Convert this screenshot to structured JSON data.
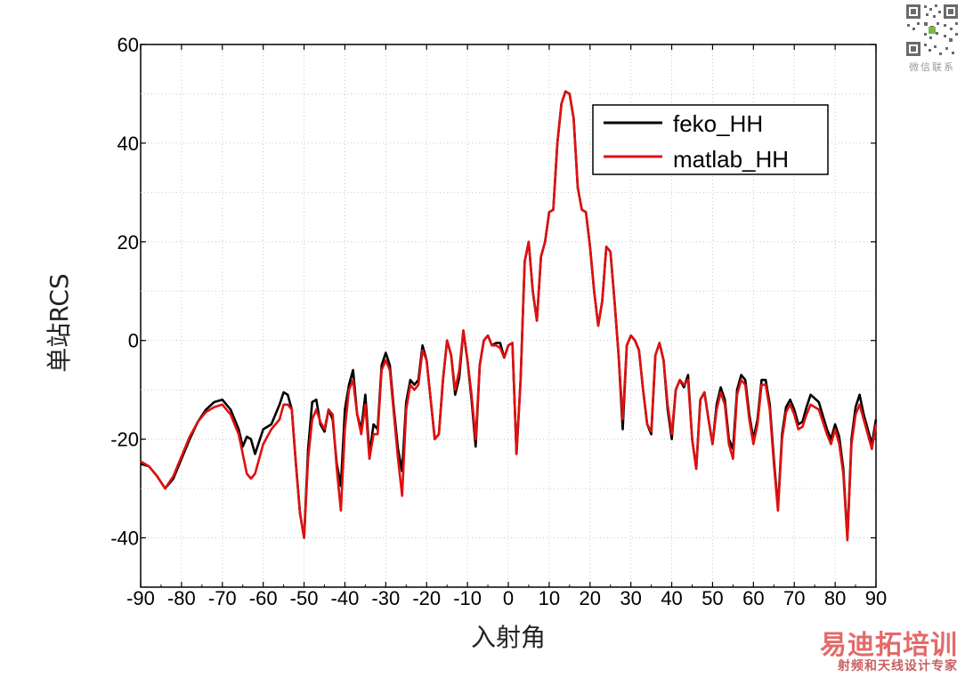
{
  "chart_data": {
    "type": "line",
    "title": "",
    "xlabel": "入射角",
    "ylabel": "单站RCS",
    "xlim": [
      -90,
      90
    ],
    "ylim": [
      -50,
      60
    ],
    "xticks": [
      "-90",
      "-80",
      "-70",
      "-60",
      "-50",
      "-40",
      "-30",
      "-20",
      "-10",
      "0",
      "10",
      "20",
      "30",
      "40",
      "50",
      "60",
      "70",
      "80",
      "90"
    ],
    "yticks": [
      "-40",
      "-20",
      "0",
      "20",
      "40",
      "60"
    ],
    "grid": true,
    "legend_position": "top-right",
    "series": [
      {
        "name": "feko_HH",
        "color": "#000000",
        "points": [
          [
            -90,
            -25
          ],
          [
            -88,
            -25.5
          ],
          [
            -86,
            -27.5
          ],
          [
            -84,
            -30
          ],
          [
            -82,
            -28
          ],
          [
            -80,
            -24
          ],
          [
            -78,
            -20
          ],
          [
            -76,
            -16.5
          ],
          [
            -74,
            -14
          ],
          [
            -72,
            -12.5
          ],
          [
            -70,
            -12
          ],
          [
            -68,
            -14
          ],
          [
            -66,
            -18
          ],
          [
            -65,
            -21.5
          ],
          [
            -64,
            -19.5
          ],
          [
            -63,
            -20
          ],
          [
            -62,
            -23
          ],
          [
            -60,
            -18
          ],
          [
            -58,
            -17
          ],
          [
            -56,
            -13
          ],
          [
            -55,
            -10.5
          ],
          [
            -54,
            -11
          ],
          [
            -53,
            -14
          ],
          [
            -52,
            -25
          ],
          [
            -51,
            -35
          ],
          [
            -50,
            -40
          ],
          [
            -49,
            -22
          ],
          [
            -48,
            -12.5
          ],
          [
            -47,
            -12
          ],
          [
            -46,
            -17
          ],
          [
            -45,
            -18.5
          ],
          [
            -44,
            -14
          ],
          [
            -43,
            -16
          ],
          [
            -42,
            -25
          ],
          [
            -41,
            -29.5
          ],
          [
            -40,
            -14
          ],
          [
            -39,
            -9
          ],
          [
            -38,
            -6
          ],
          [
            -37,
            -15
          ],
          [
            -36,
            -18
          ],
          [
            -35,
            -11
          ],
          [
            -34,
            -23
          ],
          [
            -33,
            -17
          ],
          [
            -32,
            -18
          ],
          [
            -31,
            -5
          ],
          [
            -30,
            -2.5
          ],
          [
            -29,
            -5
          ],
          [
            -28,
            -14
          ],
          [
            -27,
            -22
          ],
          [
            -26,
            -26.5
          ],
          [
            -25,
            -12.5
          ],
          [
            -24,
            -8
          ],
          [
            -23,
            -9
          ],
          [
            -22,
            -8
          ],
          [
            -21,
            -1
          ],
          [
            -20,
            -4
          ],
          [
            -19,
            -12
          ],
          [
            -18,
            -20
          ],
          [
            -17,
            -19
          ],
          [
            -16,
            -8
          ],
          [
            -15,
            0
          ],
          [
            -14,
            -3
          ],
          [
            -13,
            -11
          ],
          [
            -12,
            -7.5
          ],
          [
            -11,
            2
          ],
          [
            -10,
            -4
          ],
          [
            -9,
            -12
          ],
          [
            -8,
            -21.5
          ],
          [
            -7,
            -5
          ],
          [
            -6,
            0
          ],
          [
            -5,
            1
          ],
          [
            -4,
            -1
          ],
          [
            -3,
            -0.5
          ],
          [
            -2,
            -0.5
          ],
          [
            -1,
            -3.5
          ],
          [
            0,
            -1
          ],
          [
            1,
            -0.5
          ],
          [
            2,
            -23
          ],
          [
            3,
            -8
          ],
          [
            4,
            16
          ],
          [
            5,
            20
          ],
          [
            6,
            10
          ],
          [
            7,
            4
          ],
          [
            8,
            17
          ],
          [
            9,
            20
          ],
          [
            10,
            26
          ],
          [
            11,
            26.5
          ],
          [
            12,
            40
          ],
          [
            13,
            48
          ],
          [
            14,
            50.5
          ],
          [
            15,
            50
          ],
          [
            16,
            45
          ],
          [
            17,
            31
          ],
          [
            18,
            26.5
          ],
          [
            19,
            26
          ],
          [
            20,
            19
          ],
          [
            21,
            10
          ],
          [
            22,
            3
          ],
          [
            23,
            8
          ],
          [
            24,
            19
          ],
          [
            25,
            18
          ],
          [
            26,
            8
          ],
          [
            27,
            -3
          ],
          [
            28,
            -18
          ],
          [
            29,
            -1
          ],
          [
            30,
            1
          ],
          [
            31,
            0
          ],
          [
            32,
            -2
          ],
          [
            33,
            -10
          ],
          [
            34,
            -17
          ],
          [
            35,
            -19
          ],
          [
            36,
            -3
          ],
          [
            37,
            -0.5
          ],
          [
            38,
            -4
          ],
          [
            39,
            -14
          ],
          [
            40,
            -20
          ],
          [
            41,
            -10
          ],
          [
            42,
            -8
          ],
          [
            43,
            -9.5
          ],
          [
            44,
            -7
          ],
          [
            45,
            -20
          ],
          [
            46,
            -26
          ],
          [
            47,
            -12
          ],
          [
            48,
            -10.5
          ],
          [
            49,
            -16
          ],
          [
            50,
            -21
          ],
          [
            51,
            -13
          ],
          [
            52,
            -9.5
          ],
          [
            53,
            -12
          ],
          [
            54,
            -20
          ],
          [
            55,
            -22
          ],
          [
            56,
            -10
          ],
          [
            57,
            -7
          ],
          [
            58,
            -8
          ],
          [
            59,
            -15
          ],
          [
            60,
            -20
          ],
          [
            61,
            -16
          ],
          [
            62,
            -8
          ],
          [
            63,
            -8
          ],
          [
            64,
            -13
          ],
          [
            65,
            -24
          ],
          [
            66,
            -34
          ],
          [
            67,
            -19
          ],
          [
            68,
            -13.5
          ],
          [
            69,
            -12
          ],
          [
            70,
            -14
          ],
          [
            71,
            -17
          ],
          [
            72,
            -16.5
          ],
          [
            73,
            -13.5
          ],
          [
            74,
            -11
          ],
          [
            76,
            -12.5
          ],
          [
            78,
            -18
          ],
          [
            79,
            -20
          ],
          [
            80,
            -17
          ],
          [
            81,
            -19.5
          ],
          [
            82,
            -26
          ],
          [
            83,
            -40
          ],
          [
            84,
            -20
          ],
          [
            85,
            -13.5
          ],
          [
            86,
            -11
          ],
          [
            87,
            -15
          ],
          [
            88,
            -18
          ],
          [
            89,
            -21
          ],
          [
            90,
            -16
          ]
        ]
      },
      {
        "name": "matlab_HH",
        "color": "#e01010",
        "points": [
          [
            -90,
            -24.5
          ],
          [
            -88,
            -25.5
          ],
          [
            -86,
            -27.5
          ],
          [
            -84,
            -30
          ],
          [
            -82,
            -27.5
          ],
          [
            -80,
            -23.5
          ],
          [
            -78,
            -19.5
          ],
          [
            -76,
            -16.5
          ],
          [
            -74,
            -14.5
          ],
          [
            -72,
            -13.5
          ],
          [
            -70,
            -13
          ],
          [
            -68,
            -15
          ],
          [
            -66,
            -19
          ],
          [
            -65,
            -23
          ],
          [
            -64,
            -27
          ],
          [
            -63,
            -28
          ],
          [
            -62,
            -27
          ],
          [
            -60,
            -21
          ],
          [
            -58,
            -18
          ],
          [
            -56,
            -16
          ],
          [
            -55,
            -13
          ],
          [
            -54,
            -13
          ],
          [
            -53,
            -14
          ],
          [
            -52,
            -25
          ],
          [
            -51,
            -35
          ],
          [
            -50,
            -40
          ],
          [
            -49,
            -24
          ],
          [
            -48,
            -16
          ],
          [
            -47,
            -14
          ],
          [
            -46,
            -16.5
          ],
          [
            -45,
            -18
          ],
          [
            -44,
            -14
          ],
          [
            -43,
            -15
          ],
          [
            -42,
            -26
          ],
          [
            -41,
            -34.5
          ],
          [
            -40,
            -18
          ],
          [
            -39,
            -10
          ],
          [
            -38,
            -8
          ],
          [
            -37,
            -15
          ],
          [
            -36,
            -19
          ],
          [
            -35,
            -13
          ],
          [
            -34,
            -24
          ],
          [
            -33,
            -19
          ],
          [
            -32,
            -19
          ],
          [
            -31,
            -6
          ],
          [
            -30,
            -4
          ],
          [
            -29,
            -6
          ],
          [
            -28,
            -15
          ],
          [
            -27,
            -24
          ],
          [
            -26,
            -31.5
          ],
          [
            -25,
            -14
          ],
          [
            -24,
            -9
          ],
          [
            -23,
            -10
          ],
          [
            -22,
            -9
          ],
          [
            -21,
            -2
          ],
          [
            -20,
            -4
          ],
          [
            -19,
            -12
          ],
          [
            -18,
            -20
          ],
          [
            -17,
            -19
          ],
          [
            -16,
            -8
          ],
          [
            -15,
            0
          ],
          [
            -14,
            -3
          ],
          [
            -13,
            -10
          ],
          [
            -12,
            -6
          ],
          [
            -11,
            2
          ],
          [
            -10,
            -4
          ],
          [
            -9,
            -11
          ],
          [
            -8,
            -20
          ],
          [
            -7,
            -5
          ],
          [
            -6,
            0
          ],
          [
            -5,
            1
          ],
          [
            -4,
            -1
          ],
          [
            -3,
            -1
          ],
          [
            -2,
            -1.5
          ],
          [
            -1,
            -3.5
          ],
          [
            0,
            -1
          ],
          [
            1,
            -0.5
          ],
          [
            2,
            -23
          ],
          [
            3,
            -8
          ],
          [
            4,
            16
          ],
          [
            5,
            20
          ],
          [
            6,
            10
          ],
          [
            7,
            4
          ],
          [
            8,
            17
          ],
          [
            9,
            20
          ],
          [
            10,
            26
          ],
          [
            11,
            26.5
          ],
          [
            12,
            40
          ],
          [
            13,
            48
          ],
          [
            14,
            50.5
          ],
          [
            15,
            50
          ],
          [
            16,
            45
          ],
          [
            17,
            31
          ],
          [
            18,
            26.5
          ],
          [
            19,
            26
          ],
          [
            20,
            19
          ],
          [
            21,
            10
          ],
          [
            22,
            3
          ],
          [
            23,
            8
          ],
          [
            24,
            19
          ],
          [
            25,
            18
          ],
          [
            26,
            8
          ],
          [
            27,
            -3
          ],
          [
            28,
            -16
          ],
          [
            29,
            -1
          ],
          [
            30,
            1
          ],
          [
            31,
            0
          ],
          [
            32,
            -2
          ],
          [
            33,
            -10
          ],
          [
            34,
            -17
          ],
          [
            35,
            -18.5
          ],
          [
            36,
            -3
          ],
          [
            37,
            -0.5
          ],
          [
            38,
            -4
          ],
          [
            39,
            -13
          ],
          [
            40,
            -19
          ],
          [
            41,
            -10
          ],
          [
            42,
            -8
          ],
          [
            43,
            -9
          ],
          [
            44,
            -8
          ],
          [
            45,
            -20
          ],
          [
            46,
            -26
          ],
          [
            47,
            -12
          ],
          [
            48,
            -10.5
          ],
          [
            49,
            -16
          ],
          [
            50,
            -21
          ],
          [
            51,
            -14
          ],
          [
            52,
            -10.5
          ],
          [
            53,
            -13
          ],
          [
            54,
            -21
          ],
          [
            55,
            -24
          ],
          [
            56,
            -11
          ],
          [
            57,
            -8
          ],
          [
            58,
            -9
          ],
          [
            59,
            -16
          ],
          [
            60,
            -21
          ],
          [
            61,
            -17
          ],
          [
            62,
            -9
          ],
          [
            63,
            -9
          ],
          [
            64,
            -14
          ],
          [
            65,
            -25
          ],
          [
            66,
            -34.5
          ],
          [
            67,
            -20
          ],
          [
            68,
            -14.5
          ],
          [
            69,
            -13
          ],
          [
            70,
            -15
          ],
          [
            71,
            -18
          ],
          [
            72,
            -17.5
          ],
          [
            73,
            -15
          ],
          [
            74,
            -13
          ],
          [
            76,
            -14
          ],
          [
            78,
            -19
          ],
          [
            79,
            -21
          ],
          [
            80,
            -18
          ],
          [
            81,
            -21
          ],
          [
            82,
            -27
          ],
          [
            83,
            -40.5
          ],
          [
            84,
            -21
          ],
          [
            85,
            -15
          ],
          [
            86,
            -13
          ],
          [
            87,
            -16
          ],
          [
            88,
            -19
          ],
          [
            89,
            -22
          ],
          [
            90,
            -17
          ]
        ]
      }
    ]
  },
  "watermark": {
    "qr_caption": "微信联系",
    "brand": "易迪拓培训",
    "subtitle": "射频和天线设计专家"
  }
}
